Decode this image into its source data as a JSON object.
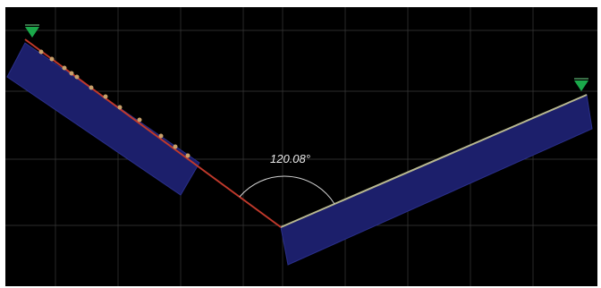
{
  "viewport": {
    "background": "#000000",
    "grid_color": "#3a3a3a"
  },
  "measurement": {
    "angle_text": "120.08°",
    "arc_color": "#d0d0d0"
  },
  "segments": {
    "left_section_color": "#1c1f6b",
    "right_section_color": "#1c1f6b",
    "centerline_color": "#c0392b",
    "right_edge_line_color": "#b8b890",
    "weld_bead_color": "#c9a06a"
  },
  "markers": {
    "support_marker_color": "#1aa84a",
    "left_support": "support-marker-left",
    "right_support": "support-marker-right"
  }
}
